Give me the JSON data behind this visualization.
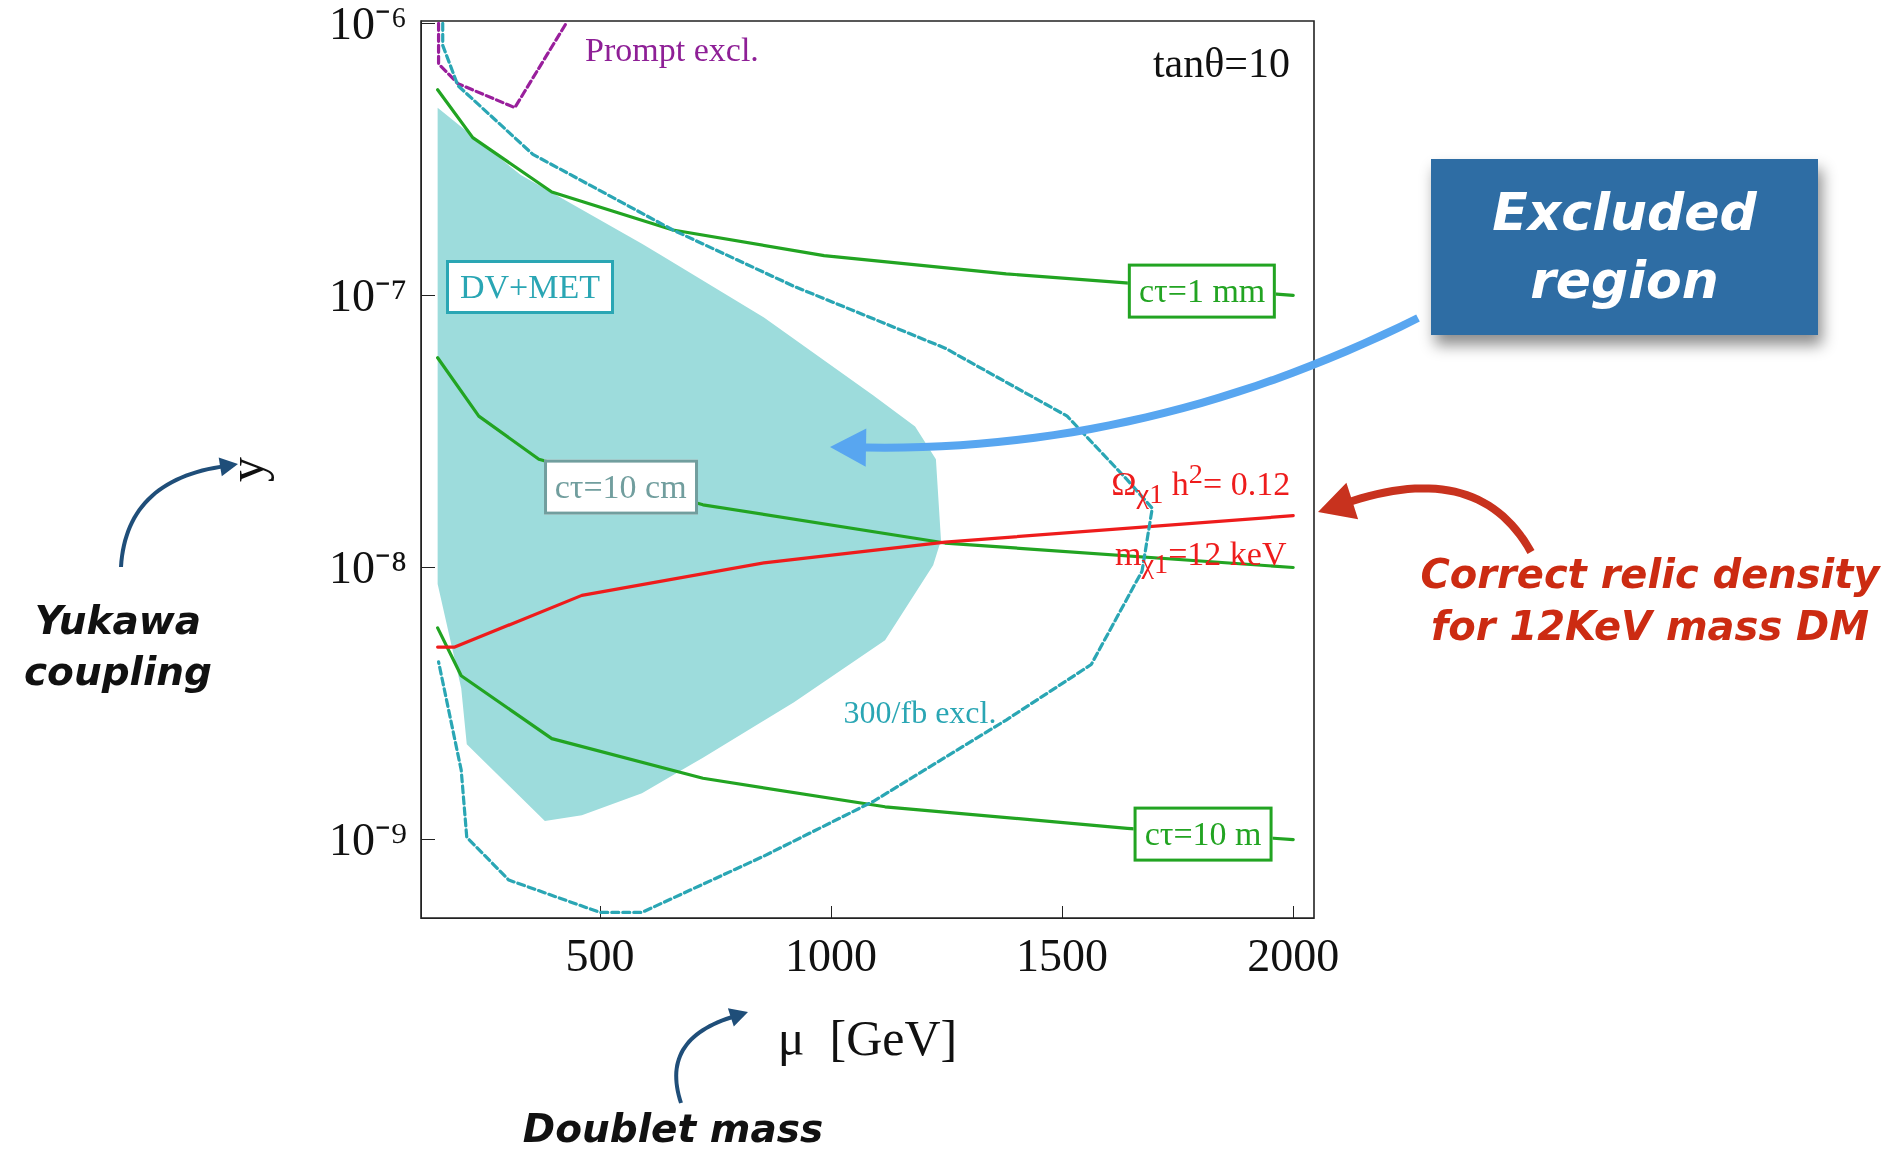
{
  "chart_data": {
    "type": "line",
    "xlabel": "μ  [GeV]",
    "ylabel": "y",
    "log": "y",
    "xlim": [
      113,
      2045
    ],
    "ylim": [
      5.15e-10,
      1.02e-06
    ],
    "xticks": [
      500,
      1000,
      1500,
      2000
    ],
    "yticks": [
      {
        "value": 1e-09,
        "label": "10⁻⁹"
      },
      {
        "value": 1e-08,
        "label": "10⁻⁸"
      },
      {
        "value": 1e-07,
        "label": "10⁻⁷"
      },
      {
        "value": 1e-06,
        "label": "10⁻⁶"
      }
    ],
    "series": [
      {
        "type": "area",
        "color": "#9ddcdc",
        "x": [
          149,
          329,
          591,
          855,
          1091,
          1182,
          1227,
          1238,
          1221,
          1117,
          920,
          723,
          591,
          461,
          381,
          212,
          200,
          149
        ],
        "values": [
          4.9e-07,
          2.77e-07,
          1.55e-07,
          8.3e-08,
          4.3e-08,
          3.3e-08,
          2.5e-08,
          1.26e-08,
          1.02e-08,
          5.4e-09,
          3.2e-09,
          2e-09,
          1.48e-09,
          1.23e-09,
          1.17e-09,
          2.24e-09,
          3.6e-09,
          8.7e-09
        ]
      },
      {
        "color": "#2aa6b4",
        "line_style": "dashed",
        "x": [
          160,
          160,
          193,
          355,
          658,
          920,
          1247,
          1511,
          1641,
          1695,
          1673,
          1563,
          1379,
          1091,
          855,
          591,
          500,
          303,
          212,
          200,
          151
        ],
        "values": [
          1e-06,
          8.3e-07,
          5.9e-07,
          3.3e-07,
          1.74e-07,
          1.08e-07,
          6.4e-08,
          3.6e-08,
          2.1e-08,
          1.65e-08,
          9.7e-09,
          4.4e-09,
          2.75e-09,
          1.38e-09,
          8.7e-10,
          5.4e-10,
          5.4e-10,
          7.1e-10,
          1.02e-09,
          1.8e-09,
          4.5e-09
        ]
      },
      {
        "color": "#991f9c",
        "line_style": "dashed",
        "x": [
          151,
          151,
          193,
          316,
          427
        ],
        "values": [
          1e-06,
          7.1e-07,
          6e-07,
          4.9e-07,
          1e-06
        ]
      },
      {
        "color": "#22a422",
        "line_style": "solid",
        "x": [
          149,
          225,
          396,
          658,
          985,
          1379,
          2000
        ],
        "values": [
          5.7e-07,
          3.8e-07,
          2.4e-07,
          1.74e-07,
          1.4e-07,
          1.2e-07,
          1e-07
        ]
      },
      {
        "color": "#22a422",
        "line_style": "solid",
        "x": [
          149,
          238,
          368,
          723,
          1247,
          2000
        ],
        "values": [
          5.9e-08,
          3.6e-08,
          2.5e-08,
          1.7e-08,
          1.23e-08,
          1e-08
        ]
      },
      {
        "color": "#22a422",
        "line_style": "solid",
        "x": [
          149,
          200,
          396,
          723,
          1117,
          1641,
          2000
        ],
        "values": [
          6e-09,
          4e-09,
          2.35e-09,
          1.68e-09,
          1.32e-09,
          1.1e-09,
          1e-09
        ]
      },
      {
        "color": "#ee1c1c",
        "line_style": "solid",
        "x": [
          149,
          186,
          461,
          855,
          1247,
          2000
        ],
        "values": [
          5.1e-09,
          5.1e-09,
          7.9e-09,
          1.04e-08,
          1.24e-08,
          1.55e-08
        ]
      }
    ],
    "annotations": [
      {
        "text": "cτ=1 mm",
        "x": 1803,
        "y": 1.04e-07
      },
      {
        "text": "cτ=10 cm",
        "x": 545,
        "y": 1.98e-08
      },
      {
        "text": "cτ=10 m",
        "x": 1805,
        "y": 1.05e-09
      },
      {
        "text": "Ω$_{χ1}$ h$^{2}$= 0.12",
        "x": 1800,
        "y": 1.5e-08
      },
      {
        "text": "m$_{χ1}$=12 keV",
        "x": 1800,
        "y": 1.5e-08
      },
      "Prompt excl.",
      "DV+MET",
      "300/fb excl.",
      "tanθ=10",
      "Excluded region",
      "Correct relic density for 12KeV mass DM",
      "Yukawa coupling",
      "Doublet mass"
    ]
  }
}
